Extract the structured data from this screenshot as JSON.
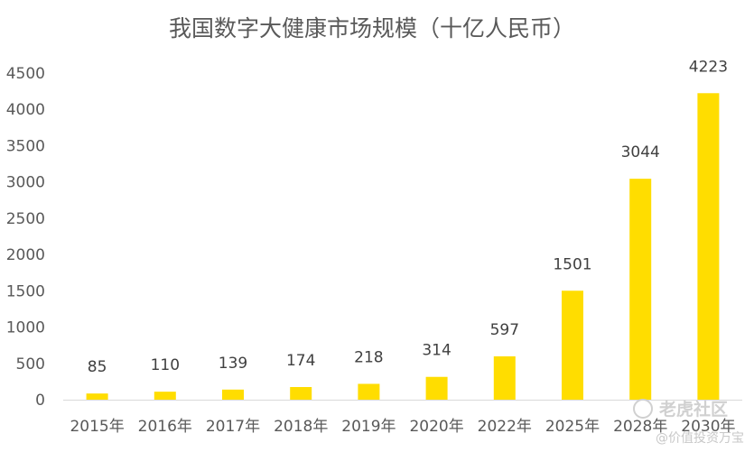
{
  "chart_data": {
    "type": "bar",
    "title": "我国数字大健康市场规模（十亿人民币）",
    "categories": [
      "2015年",
      "2016年",
      "2017年",
      "2018年",
      "2019年",
      "2020年",
      "2022年",
      "2025年",
      "2028年",
      "2030年"
    ],
    "values": [
      85,
      110,
      139,
      174,
      218,
      314,
      597,
      1501,
      3044,
      4223
    ],
    "ylim": [
      0,
      4500
    ],
    "yticks": [
      0,
      500,
      1000,
      1500,
      2000,
      2500,
      3000,
      3500,
      4000,
      4500
    ],
    "grid": false,
    "legend": "none",
    "colors": {
      "bar": "#FFDD00",
      "axis": "#d9d9d9",
      "text": "#595959"
    }
  },
  "watermark": {
    "brand": "老虎社区",
    "author": "@价值投资万宝"
  }
}
